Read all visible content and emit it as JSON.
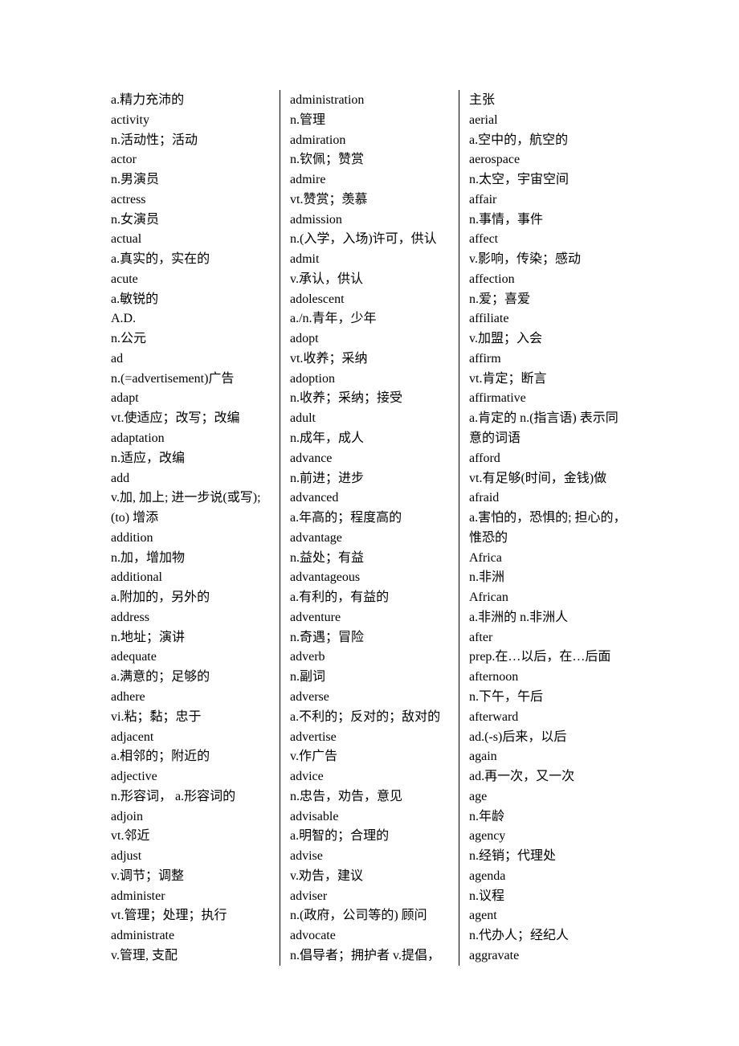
{
  "columns": [
    [
      "a.精力充沛的",
      "activity",
      "n.活动性；活动",
      "actor",
      "n.男演员",
      "actress",
      "n.女演员",
      "actual",
      "a.真实的，实在的",
      "acute",
      "a.敏锐的",
      "A.D.",
      "n.公元",
      "ad",
      "n.(=advertisement)广告",
      "adapt",
      "vt.使适应；改写；改编",
      "adaptation",
      "n.适应，改编",
      "add",
      "v.加, 加上; 进一步说(或写);",
      "(to) 增添",
      "addition",
      "n.加，增加物",
      "additional",
      "a.附加的，另外的",
      "address",
      "n.地址；演讲",
      "adequate",
      "a.满意的；足够的",
      "adhere",
      "vi.粘；黏；忠于",
      "adjacent",
      "a.相邻的；附近的",
      "adjective",
      "n.形容词，  a.形容词的",
      "adjoin",
      "vt.邻近",
      "adjust",
      "v.调节；调整",
      "administer",
      "vt.管理；处理；执行",
      "administrate",
      "v.管理, 支配"
    ],
    [
      "administration",
      "n.管理",
      "admiration",
      "n.钦佩；赞赏",
      "admire",
      "vt.赞赏；羡慕",
      "admission",
      "n.(入学，入场)许可，供认",
      "admit",
      "v.承认，供认",
      "adolescent",
      "a./n.青年，少年",
      "adopt",
      "vt.收养；采纳",
      "adoption",
      "n.收养；采纳；接受",
      "adult",
      "n.成年，成人",
      "advance",
      "n.前进；进步",
      "advanced",
      "a.年高的；程度高的",
      "advantage",
      "n.益处；有益",
      "advantageous",
      "a.有利的，有益的",
      "adventure",
      "n.奇遇；冒险",
      "adverb",
      "n.副词",
      "adverse",
      "a.不利的；反对的；敌对的",
      "advertise",
      "v.作广告",
      "advice",
      "n.忠告，劝告，意见",
      "advisable",
      "a.明智的；合理的",
      "advise",
      "v.劝告，建议",
      "adviser",
      "n.(政府，公司等的) 顾问",
      "advocate",
      "n.倡导者；拥护者 v.提倡，"
    ],
    [
      "主张",
      "aerial",
      "a.空中的，航空的",
      "aerospace",
      "n.太空，宇宙空间",
      "affair",
      "n.事情，事件",
      "affect",
      "v.影响，传染；感动",
      "affection",
      "n.爱；喜爱",
      "affiliate",
      "v.加盟；入会",
      "affirm",
      "vt.肯定；断言",
      "affirmative",
      "a.肯定的 n.(指言语) 表示同",
      "意的词语",
      "afford",
      "vt.有足够(时间，金钱)做",
      "afraid",
      "a.害怕的，恐惧的; 担心的，",
      "惟恐的",
      "Africa",
      "n.非洲",
      "African",
      "a.非洲的 n.非洲人",
      "after",
      "prep.在…以后，在…后面",
      "afternoon",
      "n.下午，午后",
      "afterward",
      "ad.(-s)后来，以后",
      "again",
      "ad.再一次，又一次",
      "age",
      "n.年龄",
      "agency",
      "n.经销；代理处",
      "agenda",
      "n.议程",
      "agent",
      "n.代办人；经纪人",
      "aggravate"
    ]
  ]
}
